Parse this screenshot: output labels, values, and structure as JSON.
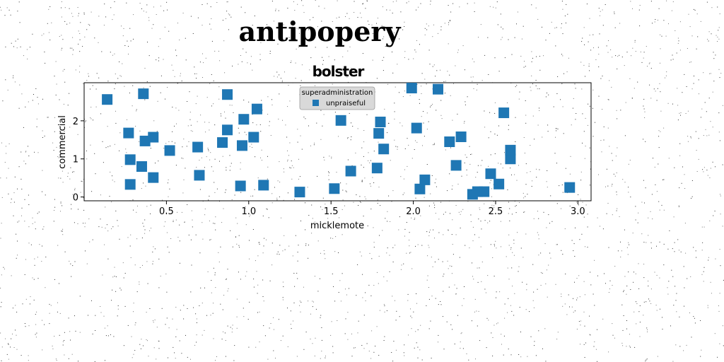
{
  "page": {
    "title": "antipopery"
  },
  "colors": {
    "marker": "#1f77b4",
    "legend_background": "#d9d9d9",
    "axis": "#000000",
    "background": "#ffffff"
  },
  "chart_data": {
    "type": "scatter",
    "title": "bolster",
    "xlabel": "micklemote",
    "ylabel": "commercial",
    "xlim": [
      0.0,
      3.08
    ],
    "ylim": [
      -0.1,
      3.0
    ],
    "xticks": [
      0.5,
      1.0,
      1.5,
      2.0,
      2.5,
      3.0
    ],
    "xtick_labels": [
      "0.5",
      "1.0",
      "1.5",
      "2.0",
      "2.5",
      "3.0"
    ],
    "yticks": [
      0,
      1,
      2
    ],
    "ytick_labels": [
      "0",
      "1",
      "2"
    ],
    "grid": false,
    "legend": {
      "title": "superadministration",
      "placement": "upper center"
    },
    "marker": "square",
    "series": [
      {
        "name": "unpraiseful",
        "points": [
          [
            0.14,
            2.56
          ],
          [
            0.27,
            1.68
          ],
          [
            0.28,
            0.98
          ],
          [
            0.28,
            0.33
          ],
          [
            0.35,
            0.8
          ],
          [
            0.36,
            2.71
          ],
          [
            0.37,
            1.47
          ],
          [
            0.42,
            1.57
          ],
          [
            0.42,
            0.51
          ],
          [
            0.52,
            1.22
          ],
          [
            0.69,
            1.31
          ],
          [
            0.7,
            0.57
          ],
          [
            0.84,
            1.43
          ],
          [
            0.87,
            2.69
          ],
          [
            0.87,
            1.76
          ],
          [
            0.95,
            0.29
          ],
          [
            0.96,
            1.35
          ],
          [
            0.97,
            2.04
          ],
          [
            1.03,
            1.57
          ],
          [
            1.05,
            2.31
          ],
          [
            1.09,
            0.31
          ],
          [
            1.31,
            0.13
          ],
          [
            1.52,
            0.22
          ],
          [
            1.56,
            2.01
          ],
          [
            1.62,
            0.68
          ],
          [
            1.78,
            0.76
          ],
          [
            1.79,
            1.67
          ],
          [
            1.8,
            1.97
          ],
          [
            1.82,
            1.26
          ],
          [
            1.99,
            2.86
          ],
          [
            2.02,
            1.81
          ],
          [
            2.04,
            0.21
          ],
          [
            2.07,
            0.45
          ],
          [
            2.15,
            2.83
          ],
          [
            2.22,
            1.45
          ],
          [
            2.26,
            0.83
          ],
          [
            2.29,
            1.58
          ],
          [
            2.36,
            0.07
          ],
          [
            2.39,
            0.14
          ],
          [
            2.43,
            0.14
          ],
          [
            2.47,
            0.61
          ],
          [
            2.52,
            0.34
          ],
          [
            2.55,
            2.21
          ],
          [
            2.59,
            1.0
          ],
          [
            2.59,
            1.23
          ],
          [
            2.95,
            0.25
          ]
        ]
      }
    ]
  }
}
